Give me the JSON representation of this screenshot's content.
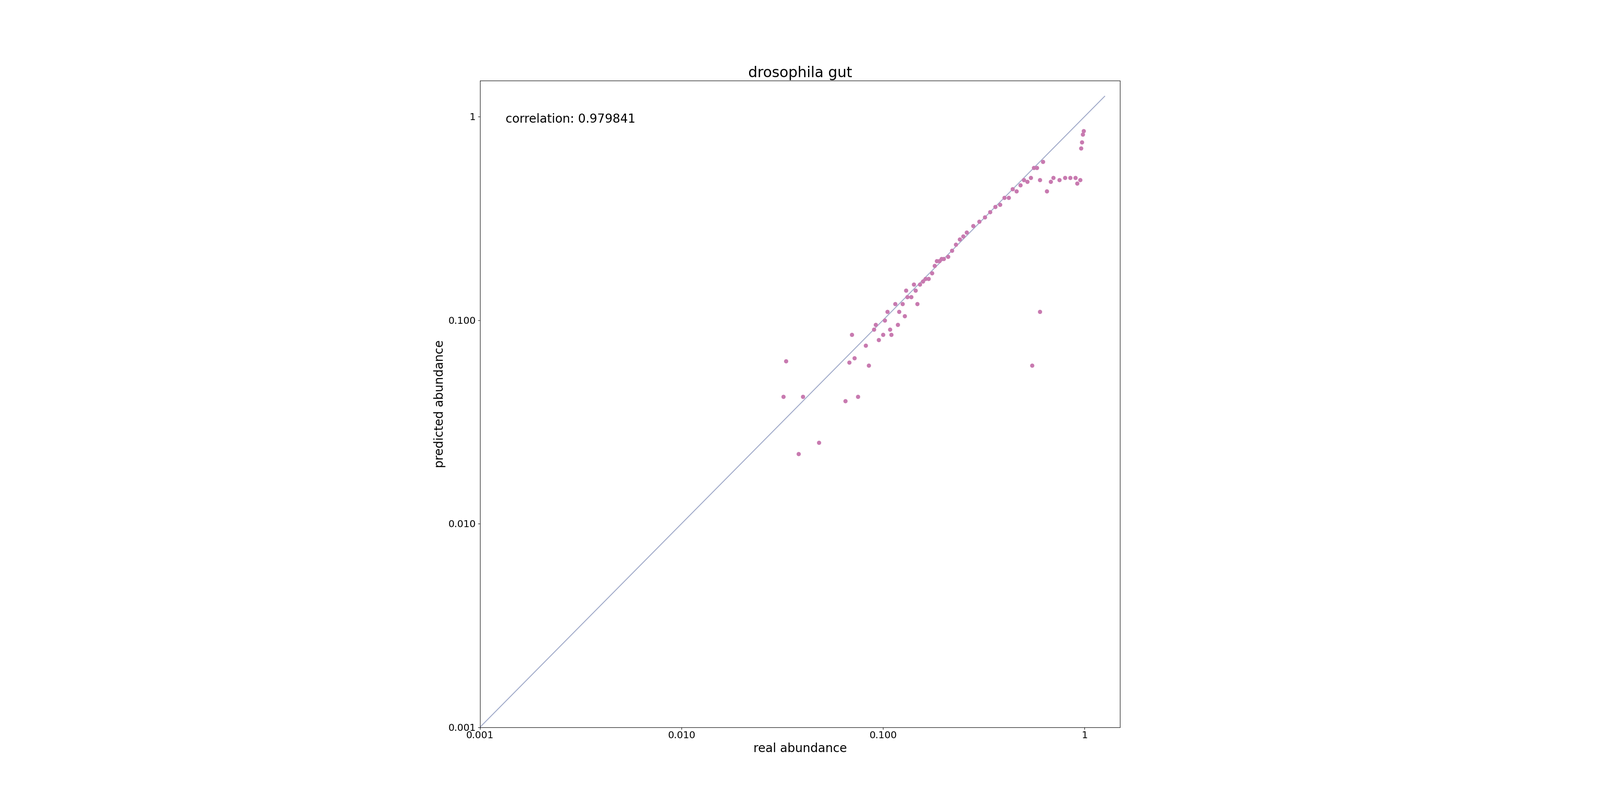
{
  "chart_data": {
    "type": "scatter",
    "title": "drosophila gut",
    "xlabel": "real abundance",
    "ylabel": "predicted abundance",
    "annotation": "correlation: 0.979841",
    "color": "#c87ab0",
    "x": [
      0.032,
      0.033,
      0.038,
      0.04,
      0.048,
      0.065,
      0.068,
      0.07,
      0.072,
      0.075,
      0.082,
      0.085,
      0.09,
      0.092,
      0.095,
      0.1,
      0.102,
      0.105,
      0.108,
      0.11,
      0.115,
      0.118,
      0.12,
      0.125,
      0.128,
      0.13,
      0.132,
      0.138,
      0.142,
      0.145,
      0.148,
      0.152,
      0.158,
      0.162,
      0.168,
      0.175,
      0.18,
      0.185,
      0.19,
      0.195,
      0.2,
      0.21,
      0.22,
      0.23,
      0.24,
      0.25,
      0.26,
      0.28,
      0.3,
      0.32,
      0.34,
      0.36,
      0.38,
      0.4,
      0.42,
      0.44,
      0.46,
      0.48,
      0.5,
      0.52,
      0.54,
      0.56,
      0.58,
      0.6,
      0.62,
      0.65,
      0.68,
      0.7,
      0.75,
      0.8,
      0.85,
      0.9,
      0.92,
      0.95,
      0.96,
      0.97,
      0.98,
      0.99,
      0.6,
      0.55
    ],
    "values": [
      0.042,
      0.063,
      0.022,
      0.042,
      0.025,
      0.04,
      0.062,
      0.085,
      0.065,
      0.042,
      0.075,
      0.06,
      0.09,
      0.095,
      0.08,
      0.085,
      0.1,
      0.11,
      0.09,
      0.085,
      0.12,
      0.095,
      0.11,
      0.12,
      0.105,
      0.14,
      0.13,
      0.13,
      0.15,
      0.14,
      0.12,
      0.15,
      0.155,
      0.16,
      0.16,
      0.17,
      0.185,
      0.195,
      0.195,
      0.2,
      0.2,
      0.205,
      0.22,
      0.235,
      0.25,
      0.258,
      0.27,
      0.29,
      0.305,
      0.32,
      0.34,
      0.36,
      0.37,
      0.4,
      0.4,
      0.44,
      0.43,
      0.46,
      0.49,
      0.48,
      0.5,
      0.56,
      0.56,
      0.49,
      0.6,
      0.43,
      0.48,
      0.5,
      0.49,
      0.5,
      0.5,
      0.5,
      0.47,
      0.49,
      0.7,
      0.75,
      0.82,
      0.85,
      0.11,
      0.06
    ],
    "reference_line": {
      "type": "line",
      "color": "#9ea8c8",
      "x": [
        0.001,
        1.2589254117941673
      ],
      "values": [
        0.001,
        1.2589254117941673
      ]
    },
    "log": true,
    "xlim": [
      0.001,
      1.5
    ],
    "ylim": [
      0.001,
      1.5
    ],
    "xticks": [
      0.001,
      {
        "value": 0.01,
        "label": "0.010"
      },
      {
        "value": 0.1,
        "label": "0.100"
      },
      1
    ],
    "yticks": [
      0.001,
      {
        "value": 0.01,
        "label": "0.010"
      },
      {
        "value": 0.1,
        "label": "0.100"
      },
      1
    ],
    "grid": false
  }
}
